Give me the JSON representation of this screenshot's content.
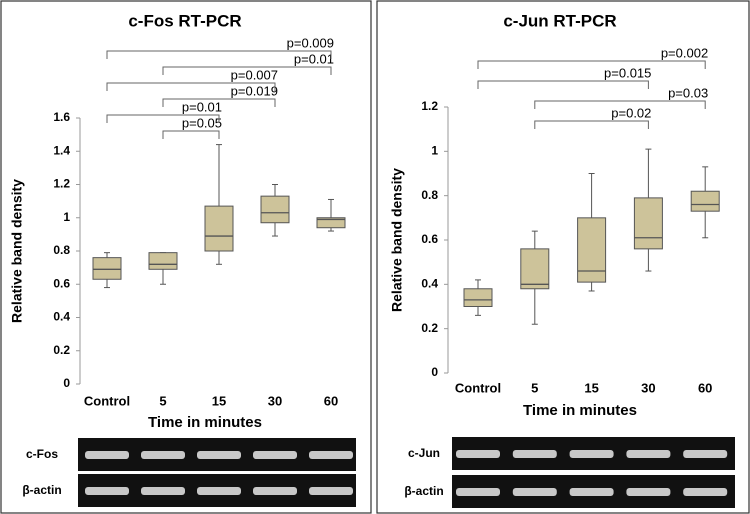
{
  "chart_data": [
    {
      "type": "box",
      "title": "c-Fos RT-PCR",
      "x_label": "Time in minutes",
      "y_label": "Relative band density",
      "categories": [
        "Control",
        "5",
        "15",
        "30",
        "60"
      ],
      "whisker_low": [
        0.58,
        0.6,
        0.72,
        0.89,
        0.92
      ],
      "q1": [
        0.63,
        0.69,
        0.8,
        0.97,
        0.94
      ],
      "median": [
        0.69,
        0.72,
        0.89,
        1.03,
        0.99
      ],
      "q3": [
        0.76,
        0.79,
        1.07,
        1.13,
        1.0
      ],
      "whisker_high": [
        0.79,
        0.79,
        1.44,
        1.2,
        1.11
      ],
      "color": "#cdc39a",
      "ylim": [
        0,
        1.6
      ],
      "yticks": [
        0,
        0.2,
        0.4,
        0.6,
        0.8,
        1,
        1.2,
        1.4,
        1.6
      ],
      "comparisons": [
        {
          "text": "p=0.05",
          "between": [
            "5",
            "15"
          ]
        },
        {
          "text": "p=0.01",
          "between": [
            "Control",
            "15"
          ]
        },
        {
          "text": "p=0.019",
          "between": [
            "5",
            "30"
          ]
        },
        {
          "text": "p=0.007",
          "between": [
            "Control",
            "30"
          ]
        },
        {
          "text": "p=0.01",
          "between": [
            "5",
            "60"
          ]
        },
        {
          "text": "p=0.009",
          "between": [
            "Control",
            "60"
          ]
        }
      ],
      "gel_labels": [
        "c-Fos",
        "β-actin"
      ]
    },
    {
      "type": "box",
      "title": "c-Jun RT-PCR",
      "x_label": "Time in minutes",
      "y_label": "Relative band density",
      "categories": [
        "Control",
        "5",
        "15",
        "30",
        "60"
      ],
      "whisker_low": [
        0.26,
        0.22,
        0.37,
        0.46,
        0.61
      ],
      "q1": [
        0.3,
        0.38,
        0.41,
        0.56,
        0.73
      ],
      "median": [
        0.33,
        0.4,
        0.46,
        0.61,
        0.76
      ],
      "q3": [
        0.38,
        0.56,
        0.7,
        0.79,
        0.82
      ],
      "whisker_high": [
        0.42,
        0.64,
        0.9,
        1.01,
        0.93
      ],
      "color": "#cdc39a",
      "ylim": [
        0,
        1.2
      ],
      "yticks": [
        0,
        0.2,
        0.4,
        0.6,
        0.8,
        1,
        1.2
      ],
      "comparisons": [
        {
          "text": "p=0.02",
          "between": [
            "5",
            "30"
          ]
        },
        {
          "text": "p=0.03",
          "between": [
            "5",
            "60"
          ]
        },
        {
          "text": "p=0.015",
          "between": [
            "Control",
            "30"
          ]
        },
        {
          "text": "p=0.002",
          "between": [
            "Control",
            "60"
          ]
        }
      ],
      "gel_labels": [
        "c-Jun",
        "β-actin"
      ]
    }
  ]
}
